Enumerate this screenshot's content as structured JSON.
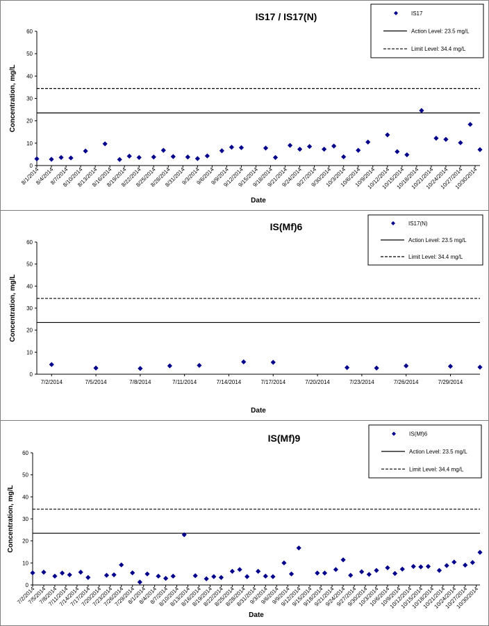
{
  "chart_data": [
    {
      "type": "scatter",
      "title": "IS17 / IS17(N)",
      "xlabel": "Date",
      "ylabel": "Concentration, mg/L",
      "ylim": [
        0,
        60
      ],
      "yticks": [
        "0",
        "10",
        "20",
        "30",
        "40",
        "50",
        "60"
      ],
      "xlim": [
        "8/1/2014",
        "10/31/2014"
      ],
      "xticks": [
        "8/1/2014",
        "8/4/2014",
        "8/7/2014",
        "8/10/2014",
        "8/13/2014",
        "8/16/2014",
        "8/19/2014",
        "8/22/2014",
        "8/25/2014",
        "8/28/2014",
        "8/31/2014",
        "9/3/2014",
        "9/6/2014",
        "9/9/2014",
        "9/12/2014",
        "9/15/2014",
        "9/18/2014",
        "9/21/2014",
        "9/24/2014",
        "9/27/2014",
        "9/30/2014",
        "10/3/2014",
        "10/6/2014",
        "10/9/2014",
        "10/12/2014",
        "10/15/2014",
        "10/18/2014",
        "10/21/2014",
        "10/24/2014",
        "10/27/2014",
        "10/30/2014"
      ],
      "legend_position": "top-right",
      "legend": [
        "IS17",
        "Action Level: 23.5 mg/L",
        "Limit Level: 34.4 mg/L"
      ],
      "reference_lines": [
        {
          "name": "Action Level: 23.5 mg/L",
          "y": 23.5,
          "style": "solid"
        },
        {
          "name": "Limit Level: 34.4 mg/L",
          "y": 34.4,
          "style": "dashed"
        }
      ],
      "series": [
        {
          "name": "IS17",
          "color": "#00008B",
          "marker": "diamond",
          "points": [
            {
              "x": "8/1/2014",
              "y": 3
            },
            {
              "x": "8/4/2014",
              "y": 2.8
            },
            {
              "x": "8/6/2014",
              "y": 3.6
            },
            {
              "x": "8/8/2014",
              "y": 3.4
            },
            {
              "x": "8/11/2014",
              "y": 6.5
            },
            {
              "x": "8/15/2014",
              "y": 9.7
            },
            {
              "x": "8/18/2014",
              "y": 2.7
            },
            {
              "x": "8/20/2014",
              "y": 4.2
            },
            {
              "x": "8/22/2014",
              "y": 3.6
            },
            {
              "x": "8/25/2014",
              "y": 3.8
            },
            {
              "x": "8/27/2014",
              "y": 6.8
            },
            {
              "x": "8/29/2014",
              "y": 4
            },
            {
              "x": "9/1/2014",
              "y": 3.8
            },
            {
              "x": "9/3/2014",
              "y": 3.1
            },
            {
              "x": "9/5/2014",
              "y": 4.3
            },
            {
              "x": "9/8/2014",
              "y": 6.6
            },
            {
              "x": "9/10/2014",
              "y": 8.2
            },
            {
              "x": "9/12/2014",
              "y": 8
            },
            {
              "x": "9/17/2014",
              "y": 7.8
            },
            {
              "x": "9/19/2014",
              "y": 3.6
            },
            {
              "x": "9/22/2014",
              "y": 9
            },
            {
              "x": "9/24/2014",
              "y": 7.3
            },
            {
              "x": "9/26/2014",
              "y": 8.5
            },
            {
              "x": "9/29/2014",
              "y": 7.3
            },
            {
              "x": "10/1/2014",
              "y": 8.7
            },
            {
              "x": "10/3/2014",
              "y": 3.9
            },
            {
              "x": "10/6/2014",
              "y": 6.8
            },
            {
              "x": "10/8/2014",
              "y": 10.5
            },
            {
              "x": "10/12/2014",
              "y": 13.7
            },
            {
              "x": "10/14/2014",
              "y": 6.2
            },
            {
              "x": "10/16/2014",
              "y": 4.8
            },
            {
              "x": "10/19/2014",
              "y": 24.6
            },
            {
              "x": "10/22/2014",
              "y": 12.2
            },
            {
              "x": "10/24/2014",
              "y": 11.7
            },
            {
              "x": "10/27/2014",
              "y": 10.2
            },
            {
              "x": "10/29/2014",
              "y": 18.4
            },
            {
              "x": "10/31/2014",
              "y": 7.1
            }
          ]
        }
      ]
    },
    {
      "type": "scatter",
      "title": "IS(Mf)6",
      "xlabel": "Date",
      "ylabel": "Concentration, mg/L",
      "ylim": [
        0,
        60
      ],
      "yticks": [
        "0",
        "10",
        "20",
        "30",
        "40",
        "50",
        "60"
      ],
      "xlim": [
        "7/1/2014",
        "7/31/2014"
      ],
      "xticks": [
        "7/2/2014",
        "7/5/2014",
        "7/8/2014",
        "7/11/2014",
        "7/14/2014",
        "7/17/2014",
        "7/20/2014",
        "7/23/2014",
        "7/26/2014",
        "7/29/2014"
      ],
      "legend_position": "top-right",
      "legend": [
        "IS17(N)",
        "Action Level: 23.5 mg/L",
        "Limit Level: 34.4 mg/L"
      ],
      "reference_lines": [
        {
          "name": "Action Level: 23.5 mg/L",
          "y": 23.5,
          "style": "solid"
        },
        {
          "name": "Limit Level: 34.4 mg/L",
          "y": 34.4,
          "style": "dashed"
        }
      ],
      "series": [
        {
          "name": "IS17(N)",
          "color": "#00008B",
          "marker": "diamond",
          "points": [
            {
              "x": "7/2/2014",
              "y": 4.4
            },
            {
              "x": "7/5/2014",
              "y": 2.8
            },
            {
              "x": "7/8/2014",
              "y": 2.6
            },
            {
              "x": "7/10/2014",
              "y": 3.8
            },
            {
              "x": "7/12/2014",
              "y": 4
            },
            {
              "x": "7/15/2014",
              "y": 5.6
            },
            {
              "x": "7/17/2014",
              "y": 5.4
            },
            {
              "x": "7/22/2014",
              "y": 3
            },
            {
              "x": "7/24/2014",
              "y": 2.8
            },
            {
              "x": "7/26/2014",
              "y": 3.8
            },
            {
              "x": "7/29/2014",
              "y": 3.6
            },
            {
              "x": "7/31/2014",
              "y": 3.2
            }
          ]
        }
      ]
    },
    {
      "type": "scatter",
      "title": "IS(Mf)9",
      "xlabel": "Date",
      "ylabel": "Concentration, mg/L",
      "ylim": [
        0,
        60
      ],
      "yticks": [
        "0",
        "10",
        "20",
        "30",
        "40",
        "50",
        "60"
      ],
      "xlim": [
        "7/2/2014",
        "10/31/2014"
      ],
      "xticks": [
        "7/2/2014",
        "7/5/2014",
        "7/8/2014",
        "7/11/2014",
        "7/14/2014",
        "7/17/2014",
        "7/20/2014",
        "7/23/2014",
        "7/26/2014",
        "7/29/2014",
        "8/1/2014",
        "8/4/2014",
        "8/7/2014",
        "8/10/2014",
        "8/13/2014",
        "8/16/2014",
        "8/19/2014",
        "8/22/2014",
        "8/25/2014",
        "8/28/2014",
        "8/31/2014",
        "9/3/2014",
        "9/6/2014",
        "9/9/2014",
        "9/12/2014",
        "9/15/2014",
        "9/18/2014",
        "9/21/2014",
        "9/24/2014",
        "9/27/2014",
        "9/30/2014",
        "10/3/2014",
        "10/6/2014",
        "10/9/2014",
        "10/12/2014",
        "10/15/2014",
        "10/18/2014",
        "10/21/2014",
        "10/24/2014",
        "10/27/2014",
        "10/30/2014"
      ],
      "legend_position": "top-right",
      "legend": [
        "IS(Mf)6",
        "Action Level: 23.5 mg/L",
        "Limit Level: 34.4 mg/L"
      ],
      "reference_lines": [
        {
          "name": "Action Level: 23.5 mg/L",
          "y": 23.5,
          "style": "solid"
        },
        {
          "name": "Limit Level: 34.4 mg/L",
          "y": 34.4,
          "style": "dashed"
        }
      ],
      "series": [
        {
          "name": "IS(Mf)6",
          "color": "#00008B",
          "marker": "diamond",
          "points": [
            {
              "x": "7/2/2014",
              "y": 5.5
            },
            {
              "x": "7/5/2014",
              "y": 5.8
            },
            {
              "x": "7/8/2014",
              "y": 4
            },
            {
              "x": "7/10/2014",
              "y": 5.4
            },
            {
              "x": "7/12/2014",
              "y": 4.6
            },
            {
              "x": "7/15/2014",
              "y": 5.8
            },
            {
              "x": "7/17/2014",
              "y": 3.4
            },
            {
              "x": "7/22/2014",
              "y": 4.4
            },
            {
              "x": "7/24/2014",
              "y": 4.6
            },
            {
              "x": "7/26/2014",
              "y": 9.1
            },
            {
              "x": "7/29/2014",
              "y": 5.5
            },
            {
              "x": "7/31/2014",
              "y": 1.3
            },
            {
              "x": "8/2/2014",
              "y": 5
            },
            {
              "x": "8/5/2014",
              "y": 4
            },
            {
              "x": "8/7/2014",
              "y": 3
            },
            {
              "x": "8/9/2014",
              "y": 4
            },
            {
              "x": "8/12/2014",
              "y": 22.8
            },
            {
              "x": "8/15/2014",
              "y": 4.2
            },
            {
              "x": "8/18/2014",
              "y": 2.8
            },
            {
              "x": "8/20/2014",
              "y": 3.8
            },
            {
              "x": "8/22/2014",
              "y": 3.4
            },
            {
              "x": "8/25/2014",
              "y": 6.2
            },
            {
              "x": "8/27/2014",
              "y": 7
            },
            {
              "x": "8/29/2014",
              "y": 3.8
            },
            {
              "x": "9/1/2014",
              "y": 6.2
            },
            {
              "x": "9/3/2014",
              "y": 4
            },
            {
              "x": "9/5/2014",
              "y": 3.8
            },
            {
              "x": "9/8/2014",
              "y": 10
            },
            {
              "x": "9/10/2014",
              "y": 5
            },
            {
              "x": "9/12/2014",
              "y": 16.8
            },
            {
              "x": "9/17/2014",
              "y": 5.4
            },
            {
              "x": "9/19/2014",
              "y": 5.4
            },
            {
              "x": "9/22/2014",
              "y": 7
            },
            {
              "x": "9/24/2014",
              "y": 11.4
            },
            {
              "x": "9/26/2014",
              "y": 4.4
            },
            {
              "x": "9/29/2014",
              "y": 6
            },
            {
              "x": "10/1/2014",
              "y": 4.8
            },
            {
              "x": "10/3/2014",
              "y": 6.6
            },
            {
              "x": "10/6/2014",
              "y": 7.8
            },
            {
              "x": "10/8/2014",
              "y": 5.2
            },
            {
              "x": "10/10/2014",
              "y": 7.2
            },
            {
              "x": "10/13/2014",
              "y": 8.4
            },
            {
              "x": "10/15/2014",
              "y": 8.2
            },
            {
              "x": "10/17/2014",
              "y": 8.4
            },
            {
              "x": "10/20/2014",
              "y": 6.6
            },
            {
              "x": "10/22/2014",
              "y": 8.8
            },
            {
              "x": "10/24/2014",
              "y": 10.4
            },
            {
              "x": "10/27/2014",
              "y": 9
            },
            {
              "x": "10/29/2014",
              "y": 10.2
            },
            {
              "x": "10/31/2014",
              "y": 14.8
            }
          ]
        }
      ]
    }
  ]
}
